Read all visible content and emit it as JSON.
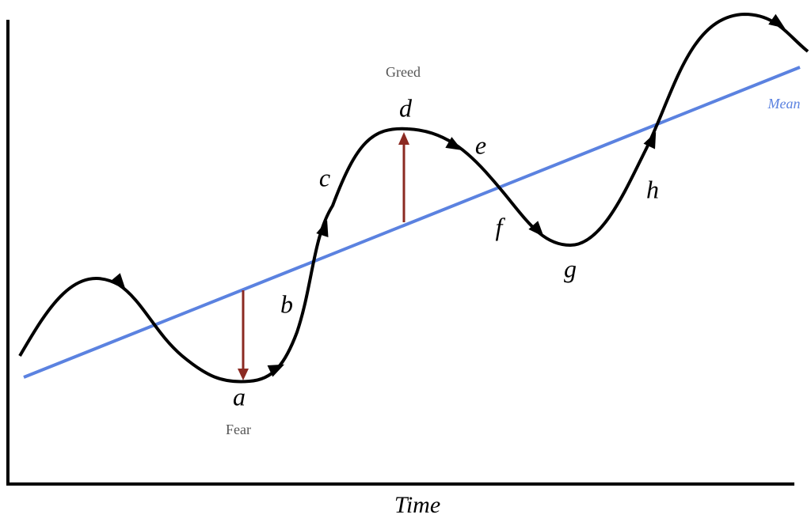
{
  "annotations": {
    "greed": "Greed",
    "fear": "Fear",
    "mean": "Mean",
    "time": "Time"
  },
  "points": [
    "a",
    "b",
    "c",
    "d",
    "e",
    "f",
    "g",
    "h"
  ]
}
